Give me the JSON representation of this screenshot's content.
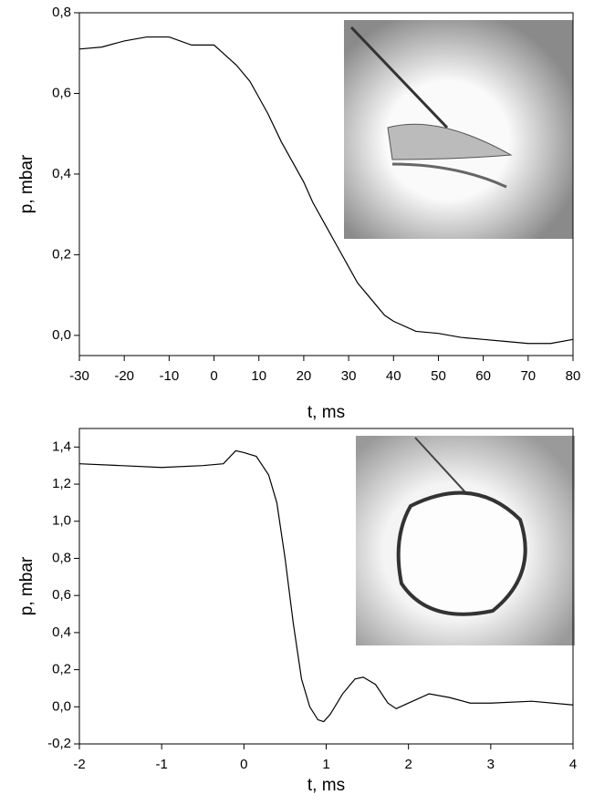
{
  "chart_data": [
    {
      "type": "line",
      "xlabel": "t, ms",
      "ylabel": "p, mbar",
      "color": "#000000",
      "x": [
        -30,
        -25,
        -20,
        -15,
        -10,
        -5,
        0,
        2,
        5,
        8,
        10,
        12,
        15,
        18,
        20,
        22,
        25,
        28,
        30,
        32,
        35,
        38,
        40,
        45,
        50,
        55,
        60,
        65,
        70,
        75,
        80
      ],
      "values": [
        0.71,
        0.715,
        0.73,
        0.74,
        0.74,
        0.72,
        0.72,
        0.7,
        0.67,
        0.63,
        0.59,
        0.55,
        0.48,
        0.42,
        0.38,
        0.33,
        0.27,
        0.21,
        0.17,
        0.13,
        0.09,
        0.05,
        0.035,
        0.01,
        0.005,
        -0.005,
        -0.01,
        -0.015,
        -0.02,
        -0.02,
        -0.01
      ],
      "xlim": [
        -30,
        80
      ],
      "xticks": [
        -30,
        -20,
        -10,
        0,
        10,
        20,
        30,
        40,
        50,
        60,
        70,
        80
      ],
      "ylim": [
        -0.05,
        0.8
      ],
      "yticks": [
        {
          "value": 0,
          "label": "0,0"
        },
        {
          "value": 0.2,
          "label": "0,2"
        },
        {
          "value": 0.4,
          "label": "0,4"
        },
        {
          "value": 0.6,
          "label": "0,6"
        },
        {
          "value": 0.8,
          "label": "0,8"
        }
      ]
    },
    {
      "type": "line",
      "xlabel": "t, ms",
      "ylabel": "p, mbar",
      "color": "#000000",
      "x": [
        -2,
        -1.5,
        -1,
        -0.5,
        -0.25,
        -0.1,
        0,
        0.15,
        0.3,
        0.4,
        0.5,
        0.6,
        0.7,
        0.8,
        0.9,
        0.97,
        1.05,
        1.2,
        1.35,
        1.45,
        1.6,
        1.75,
        1.85,
        2,
        2.25,
        2.5,
        2.75,
        3,
        3.5,
        4
      ],
      "values": [
        1.31,
        1.3,
        1.29,
        1.3,
        1.31,
        1.38,
        1.37,
        1.35,
        1.25,
        1.1,
        0.8,
        0.45,
        0.15,
        0,
        -0.07,
        -0.08,
        -0.04,
        0.07,
        0.15,
        0.16,
        0.12,
        0.02,
        -0.01,
        0.02,
        0.07,
        0.05,
        0.02,
        0.02,
        0.03,
        0.01
      ],
      "xlim": [
        -2,
        4
      ],
      "xticks": [
        -2,
        -1,
        0,
        1,
        2,
        3,
        4
      ],
      "ylim": [
        -0.2,
        1.5
      ],
      "yticks": [
        {
          "value": -0.2,
          "label": "-0,2"
        },
        {
          "value": 0,
          "label": "0,0"
        },
        {
          "value": 0.2,
          "label": "0,2"
        },
        {
          "value": 0.4,
          "label": "0,4"
        },
        {
          "value": 0.6,
          "label": "0,6"
        },
        {
          "value": 0.8,
          "label": "0,8"
        },
        {
          "value": 1.0,
          "label": "1,0"
        },
        {
          "value": 1.2,
          "label": "1,2"
        },
        {
          "value": 1.4,
          "label": "1,4"
        }
      ]
    }
  ]
}
